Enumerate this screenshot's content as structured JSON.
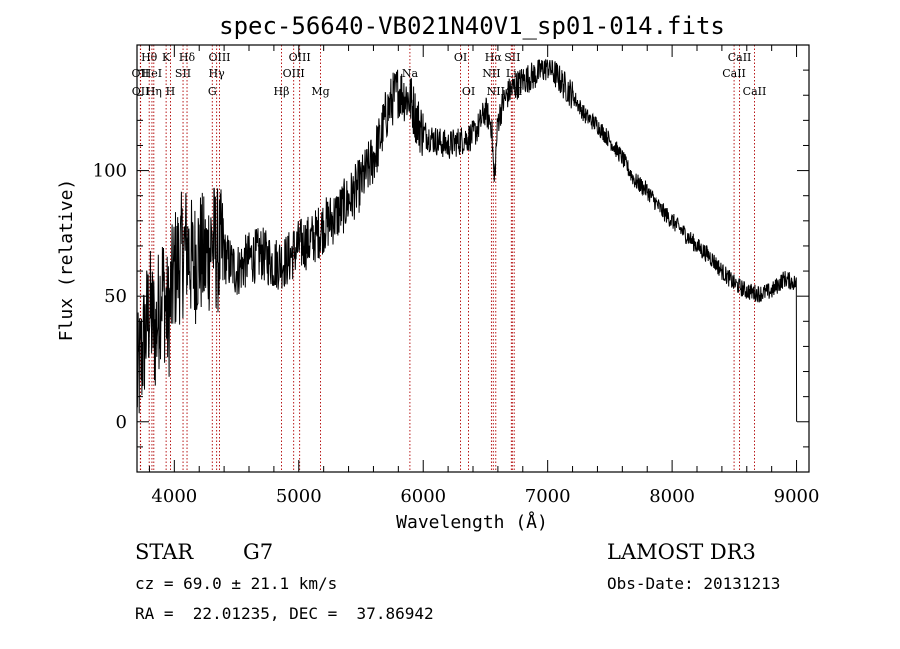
{
  "chart_data": {
    "type": "line",
    "title": "spec-56640-VB021N40V1_sp01-014.fits",
    "xlabel": "Wavelength (Å)",
    "ylabel": "Flux (relative)",
    "xlim": [
      3700,
      9100
    ],
    "ylim": [
      -20,
      150
    ],
    "xticks": [
      4000,
      5000,
      6000,
      7000,
      8000,
      9000
    ],
    "yticks": [
      0,
      50,
      100
    ],
    "series": [
      {
        "name": "flux",
        "x": [
          3700,
          3750,
          3800,
          3850,
          3900,
          3950,
          4000,
          4050,
          4100,
          4150,
          4200,
          4250,
          4300,
          4350,
          4400,
          4450,
          4500,
          4600,
          4700,
          4800,
          4900,
          5000,
          5100,
          5200,
          5300,
          5400,
          5500,
          5600,
          5650,
          5700,
          5750,
          5800,
          5850,
          5900,
          5950,
          6000,
          6100,
          6200,
          6300,
          6400,
          6450,
          6500,
          6550,
          6570,
          6600,
          6650,
          6700,
          6800,
          6900,
          7000,
          7100,
          7200,
          7300,
          7400,
          7500,
          7600,
          7700,
          7800,
          7900,
          8000,
          8100,
          8200,
          8300,
          8400,
          8500,
          8600,
          8700,
          8800,
          8900,
          9000
        ],
        "y": [
          15,
          30,
          45,
          35,
          55,
          40,
          60,
          65,
          70,
          62,
          68,
          64,
          72,
          68,
          66,
          63,
          60,
          65,
          67,
          63,
          64,
          70,
          72,
          78,
          82,
          88,
          95,
          105,
          112,
          122,
          128,
          132,
          130,
          128,
          120,
          115,
          112,
          110,
          112,
          114,
          118,
          124,
          118,
          95,
          120,
          128,
          132,
          136,
          138,
          142,
          136,
          130,
          122,
          118,
          112,
          105,
          96,
          92,
          85,
          80,
          75,
          70,
          66,
          60,
          55,
          52,
          51,
          52,
          57,
          55
        ]
      }
    ],
    "line_markers": [
      {
        "label": "Hθ",
        "x": 3798,
        "row": 1
      },
      {
        "label": "OII",
        "x": 3727,
        "row": 2
      },
      {
        "label": "OII",
        "x": 3729,
        "row": 3
      },
      {
        "label": "HeI",
        "x": 3820,
        "row": 2
      },
      {
        "label": "Hη",
        "x": 3835,
        "row": 3
      },
      {
        "label": "K",
        "x": 3934,
        "row": 1
      },
      {
        "label": "SII",
        "x": 4070,
        "row": 2
      },
      {
        "label": "H",
        "x": 3969,
        "row": 3
      },
      {
        "label": "Hδ",
        "x": 4102,
        "row": 1
      },
      {
        "label": "OIII",
        "x": 4363,
        "row": 1
      },
      {
        "label": "Hγ",
        "x": 4340,
        "row": 2
      },
      {
        "label": "G",
        "x": 4305,
        "row": 3
      },
      {
        "label": "Hβ",
        "x": 4861,
        "row": 3
      },
      {
        "label": "OIII",
        "x": 5007,
        "row": 1
      },
      {
        "label": "OIII",
        "x": 4959,
        "row": 2
      },
      {
        "label": "Mg",
        "x": 5175,
        "row": 3
      },
      {
        "label": "Na",
        "x": 5893,
        "row": 2
      },
      {
        "label": "OI",
        "x": 6300,
        "row": 1
      },
      {
        "label": "OI",
        "x": 6364,
        "row": 3
      },
      {
        "label": "Hα",
        "x": 6563,
        "row": 1
      },
      {
        "label": "NII",
        "x": 6548,
        "row": 2
      },
      {
        "label": "NII",
        "x": 6583,
        "row": 3
      },
      {
        "label": "SII",
        "x": 6716,
        "row": 1
      },
      {
        "label": "Li",
        "x": 6708,
        "row": 2
      },
      {
        "label": "SII",
        "x": 6731,
        "row": 3
      },
      {
        "label": "CaII",
        "x": 8542,
        "row": 1
      },
      {
        "label": "CaII",
        "x": 8498,
        "row": 2
      },
      {
        "label": "CaII",
        "x": 8662,
        "row": 3
      }
    ]
  },
  "info": {
    "object_class": "STAR",
    "subclass": "G7",
    "survey": "LAMOST DR3",
    "redshift": "cz = 69.0 ± 21.1 km/s",
    "obs_date": "Obs-Date: 20131213",
    "coords": "RA =  22.01235, DEC =  37.86942"
  }
}
